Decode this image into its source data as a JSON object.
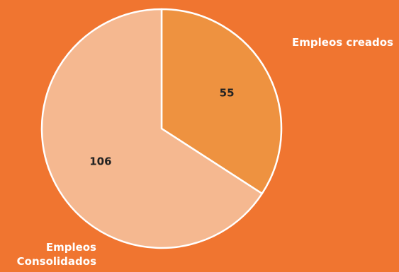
{
  "chart_data": {
    "type": "pie",
    "title": "",
    "categories": [
      "Empleos creados",
      "Empleos Consolidados"
    ],
    "values": [
      55,
      106
    ],
    "colors": [
      "#EE9240",
      "#F5B890"
    ],
    "background": "#F07530",
    "slice_border": "#ffffff",
    "data_labels": [
      "55",
      "106"
    ],
    "legend": "none"
  }
}
